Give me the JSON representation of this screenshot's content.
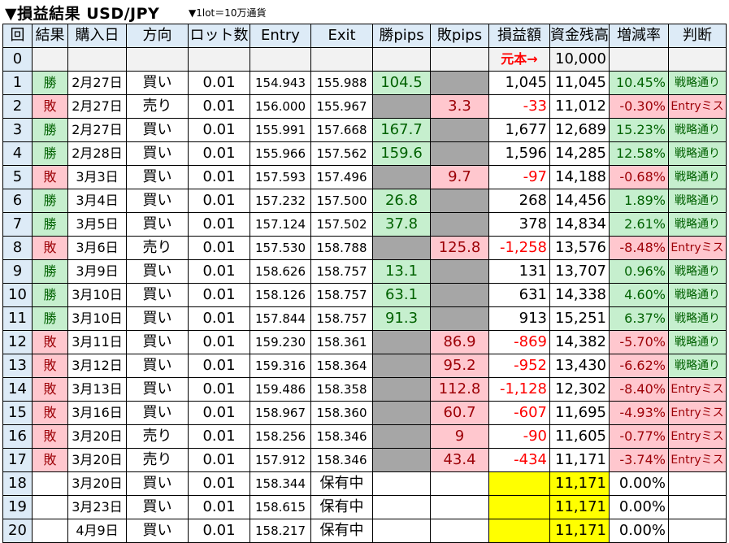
{
  "title": "▼損益結果 USD/JPY",
  "subtitle": "▼1lot＝10万通貨",
  "headers": [
    "回",
    "結果",
    "購入日",
    "方向",
    "ロット数",
    "Entry",
    "Exit",
    "勝pips",
    "敗pips",
    "損益額",
    "資金残高",
    "増減率",
    "判断"
  ],
  "row0": {
    "no": "0",
    "label": "元本→",
    "balance": "10,000"
  },
  "rows": [
    {
      "no": "1",
      "result": "勝",
      "date": "2月27日",
      "dir": "買い",
      "lot": "0.01",
      "entry": "154.943",
      "exit": "155.988",
      "win": "104.5",
      "lose": "",
      "pl": "1,045",
      "balance": "11,045",
      "rate": "10.45%",
      "judge": "戦略通り"
    },
    {
      "no": "2",
      "result": "敗",
      "date": "2月27日",
      "dir": "売り",
      "lot": "0.01",
      "entry": "156.000",
      "exit": "155.967",
      "win": "",
      "lose": "3.3",
      "pl": "-33",
      "balance": "11,012",
      "rate": "-0.30%",
      "judge": "Entryミス"
    },
    {
      "no": "3",
      "result": "勝",
      "date": "2月27日",
      "dir": "買い",
      "lot": "0.01",
      "entry": "155.991",
      "exit": "157.668",
      "win": "167.7",
      "lose": "",
      "pl": "1,677",
      "balance": "12,689",
      "rate": "15.23%",
      "judge": "戦略通り"
    },
    {
      "no": "4",
      "result": "勝",
      "date": "2月28日",
      "dir": "買い",
      "lot": "0.01",
      "entry": "155.966",
      "exit": "157.562",
      "win": "159.6",
      "lose": "",
      "pl": "1,596",
      "balance": "14,285",
      "rate": "12.58%",
      "judge": "戦略通り"
    },
    {
      "no": "5",
      "result": "敗",
      "date": "3月3日",
      "dir": "買い",
      "lot": "0.01",
      "entry": "157.593",
      "exit": "157.496",
      "win": "",
      "lose": "9.7",
      "pl": "-97",
      "balance": "14,188",
      "rate": "-0.68%",
      "judge": "戦略通り"
    },
    {
      "no": "6",
      "result": "勝",
      "date": "3月4日",
      "dir": "買い",
      "lot": "0.01",
      "entry": "157.232",
      "exit": "157.500",
      "win": "26.8",
      "lose": "",
      "pl": "268",
      "balance": "14,456",
      "rate": "1.89%",
      "judge": "戦略通り"
    },
    {
      "no": "7",
      "result": "勝",
      "date": "3月5日",
      "dir": "買い",
      "lot": "0.01",
      "entry": "157.124",
      "exit": "157.502",
      "win": "37.8",
      "lose": "",
      "pl": "378",
      "balance": "14,834",
      "rate": "2.61%",
      "judge": "戦略通り"
    },
    {
      "no": "8",
      "result": "敗",
      "date": "3月6日",
      "dir": "売り",
      "lot": "0.01",
      "entry": "157.530",
      "exit": "158.788",
      "win": "",
      "lose": "125.8",
      "pl": "-1,258",
      "balance": "13,576",
      "rate": "-8.48%",
      "judge": "Entryミス"
    },
    {
      "no": "9",
      "result": "勝",
      "date": "3月9日",
      "dir": "買い",
      "lot": "0.01",
      "entry": "158.626",
      "exit": "158.757",
      "win": "13.1",
      "lose": "",
      "pl": "131",
      "balance": "13,707",
      "rate": "0.96%",
      "judge": "戦略通り"
    },
    {
      "no": "10",
      "result": "勝",
      "date": "3月10日",
      "dir": "買い",
      "lot": "0.01",
      "entry": "158.126",
      "exit": "158.757",
      "win": "63.1",
      "lose": "",
      "pl": "631",
      "balance": "14,338",
      "rate": "4.60%",
      "judge": "戦略通り"
    },
    {
      "no": "11",
      "result": "勝",
      "date": "3月10日",
      "dir": "買い",
      "lot": "0.01",
      "entry": "157.844",
      "exit": "158.757",
      "win": "91.3",
      "lose": "",
      "pl": "913",
      "balance": "15,251",
      "rate": "6.37%",
      "judge": "戦略通り"
    },
    {
      "no": "12",
      "result": "敗",
      "date": "3月11日",
      "dir": "買い",
      "lot": "0.01",
      "entry": "159.230",
      "exit": "158.361",
      "win": "",
      "lose": "86.9",
      "pl": "-869",
      "balance": "14,382",
      "rate": "-5.70%",
      "judge": "戦略通り"
    },
    {
      "no": "13",
      "result": "敗",
      "date": "3月12日",
      "dir": "買い",
      "lot": "0.01",
      "entry": "159.316",
      "exit": "158.364",
      "win": "",
      "lose": "95.2",
      "pl": "-952",
      "balance": "13,430",
      "rate": "-6.62%",
      "judge": "戦略通り"
    },
    {
      "no": "14",
      "result": "敗",
      "date": "3月13日",
      "dir": "買い",
      "lot": "0.01",
      "entry": "159.486",
      "exit": "158.358",
      "win": "",
      "lose": "112.8",
      "pl": "-1,128",
      "balance": "12,302",
      "rate": "-8.40%",
      "judge": "Entryミス"
    },
    {
      "no": "15",
      "result": "敗",
      "date": "3月16日",
      "dir": "買い",
      "lot": "0.01",
      "entry": "158.967",
      "exit": "158.360",
      "win": "",
      "lose": "60.7",
      "pl": "-607",
      "balance": "11,695",
      "rate": "-4.93%",
      "judge": "Entryミス"
    },
    {
      "no": "16",
      "result": "敗",
      "date": "3月20日",
      "dir": "売り",
      "lot": "0.01",
      "entry": "158.256",
      "exit": "158.346",
      "win": "",
      "lose": "9",
      "pl": "-90",
      "balance": "11,605",
      "rate": "-0.77%",
      "judge": "Entryミス"
    },
    {
      "no": "17",
      "result": "敗",
      "date": "3月20日",
      "dir": "売り",
      "lot": "0.01",
      "entry": "157.912",
      "exit": "158.346",
      "win": "",
      "lose": "43.4",
      "pl": "-434",
      "balance": "11,171",
      "rate": "-3.74%",
      "judge": "Entryミス"
    },
    {
      "no": "18",
      "result": "",
      "date": "3月20日",
      "dir": "買い",
      "lot": "0.01",
      "entry": "158.344",
      "exit": "保有中",
      "win": "",
      "lose": "",
      "pl": "",
      "balance": "11,171",
      "rate": "0.00%",
      "judge": "",
      "open": true
    },
    {
      "no": "19",
      "result": "",
      "date": "3月23日",
      "dir": "買い",
      "lot": "0.01",
      "entry": "158.615",
      "exit": "保有中",
      "win": "",
      "lose": "",
      "pl": "",
      "balance": "11,171",
      "rate": "0.00%",
      "judge": "",
      "open": true
    },
    {
      "no": "20",
      "result": "",
      "date": "4月9日",
      "dir": "買い",
      "lot": "0.01",
      "entry": "158.217",
      "exit": "保有中",
      "win": "",
      "lose": "",
      "pl": "",
      "balance": "11,171",
      "rate": "0.00%",
      "judge": "",
      "open": true
    }
  ]
}
